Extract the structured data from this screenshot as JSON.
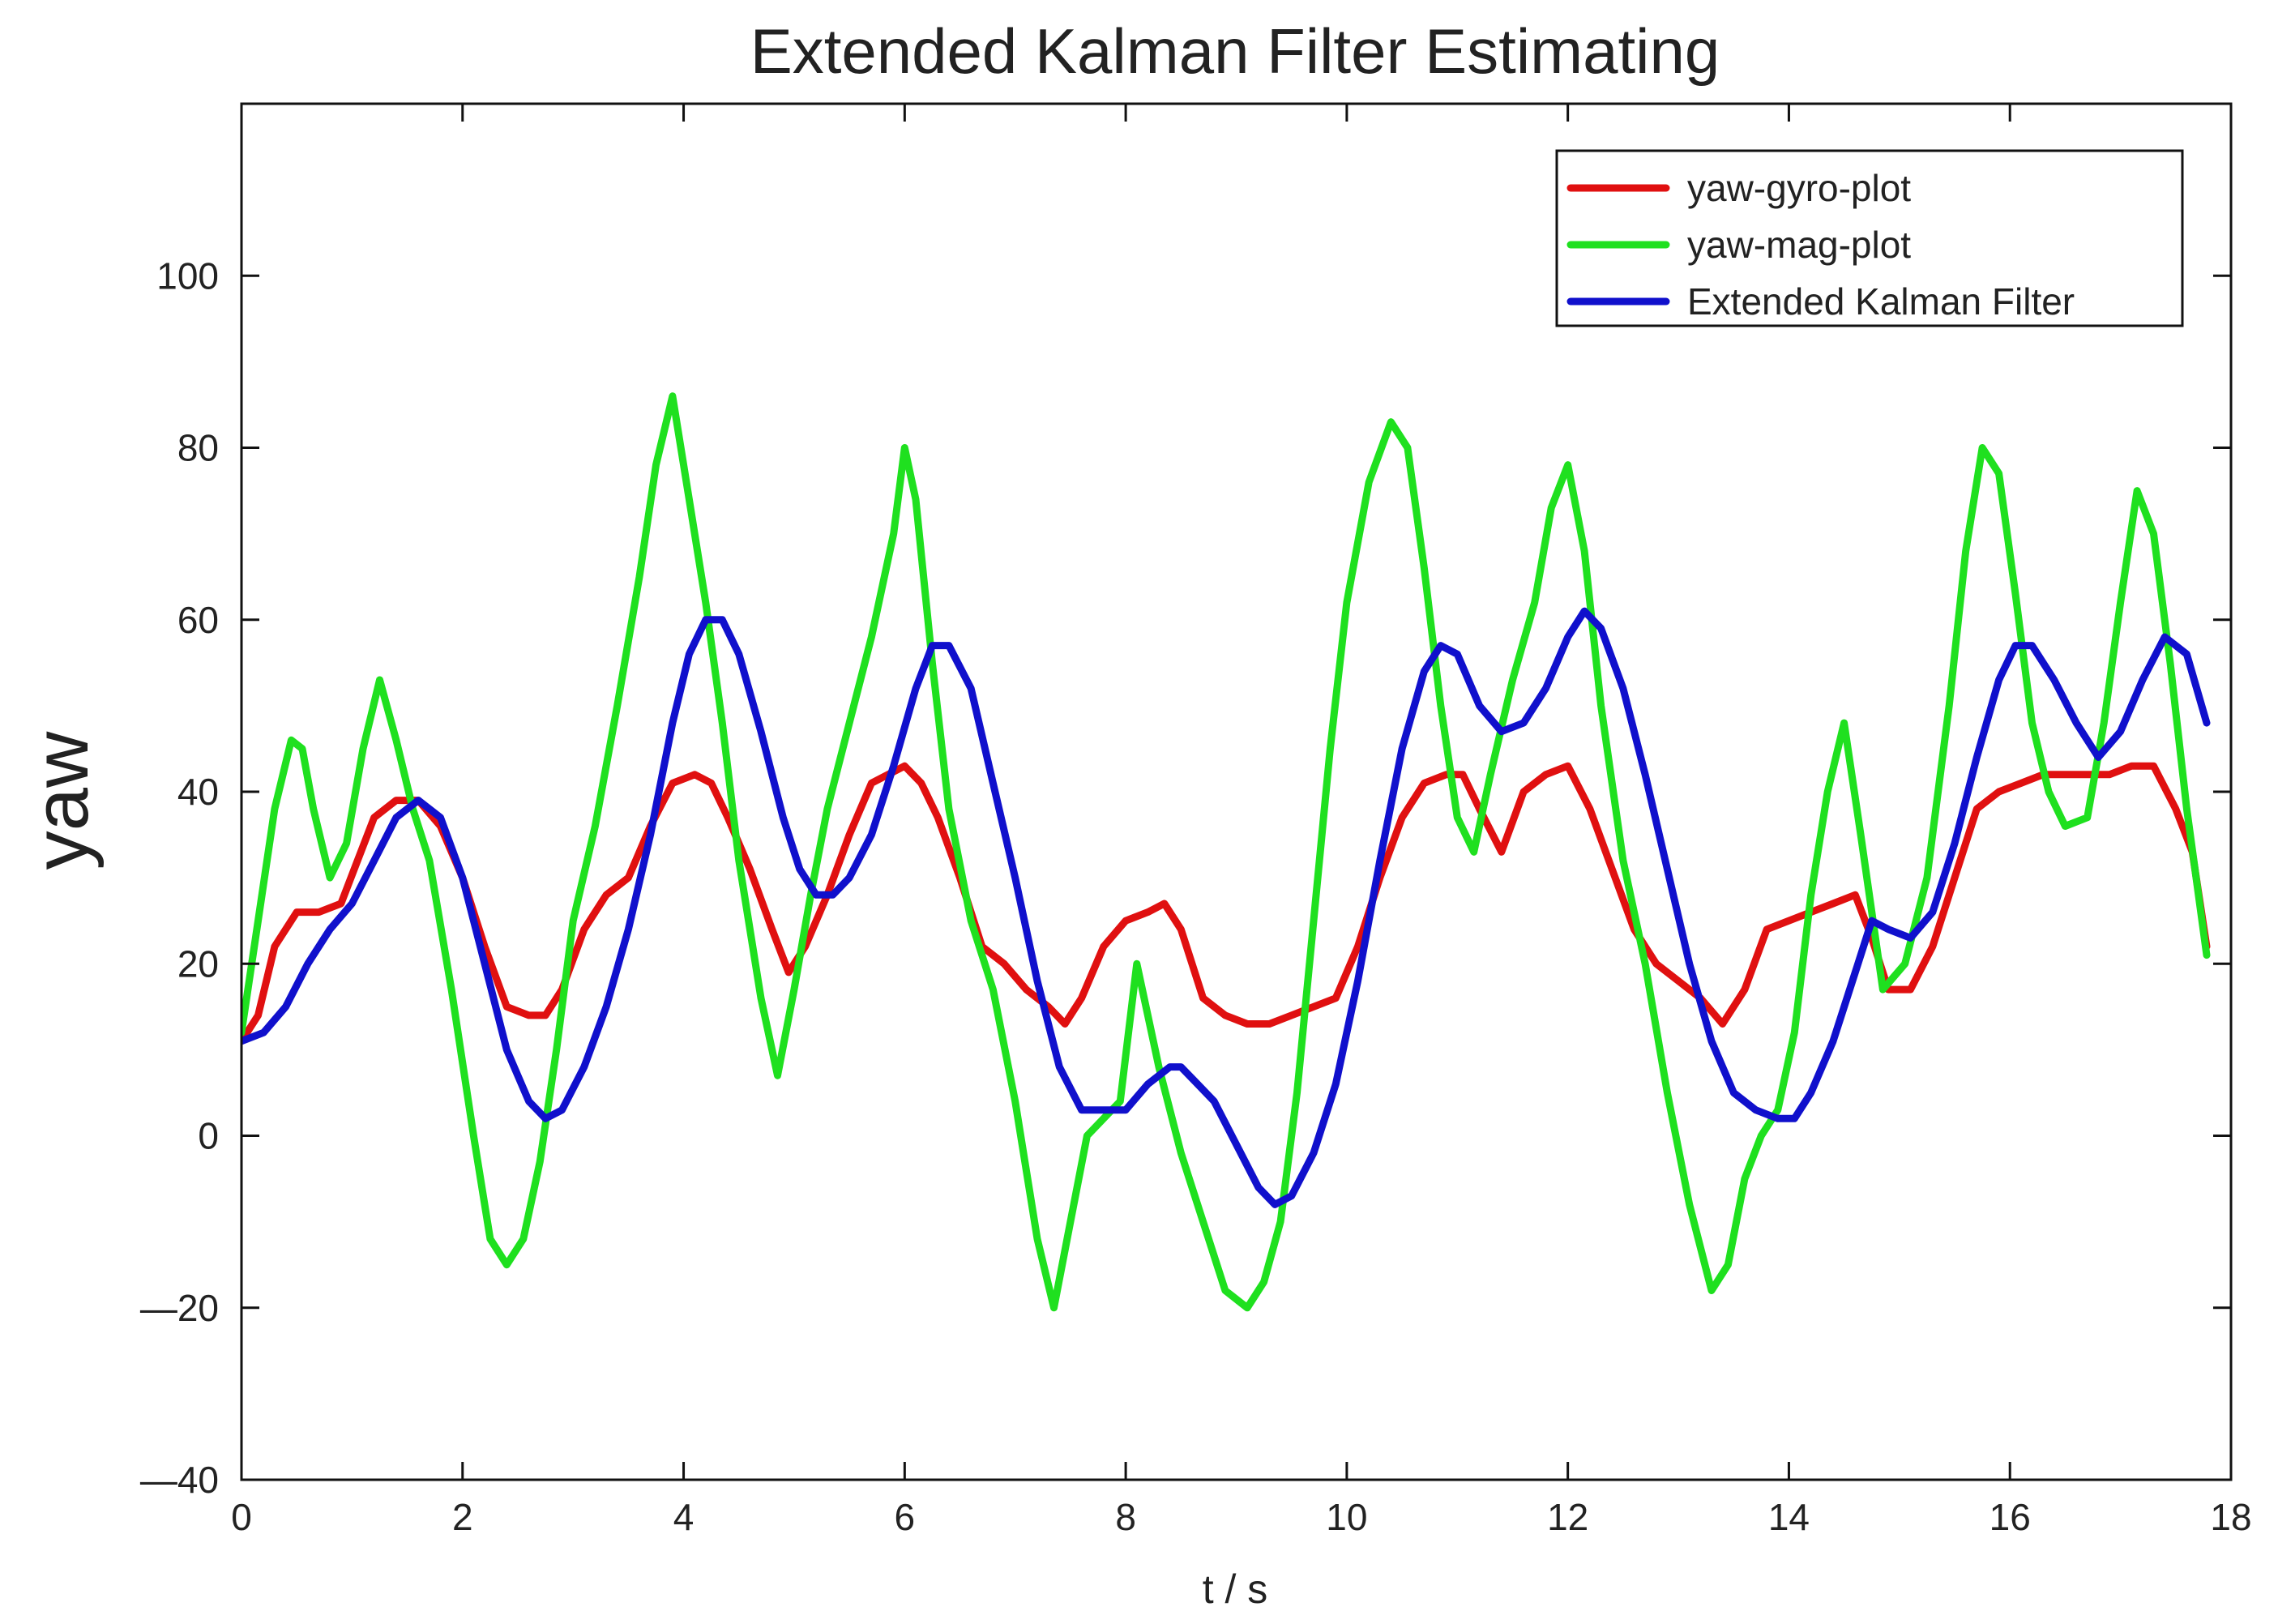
{
  "colors": {
    "gyro": "#e01010",
    "mag": "#1fe01f",
    "ekf": "#1010cc",
    "axis": "#111111",
    "background": "#ffffff"
  },
  "chart_data": {
    "type": "line",
    "title": "Extended Kalman Filter Estimating",
    "xlabel": "t / s",
    "ylabel": "yaw",
    "xlim": [
      0,
      18
    ],
    "ylim": [
      -40,
      120
    ],
    "xticks": [
      0,
      2,
      4,
      6,
      8,
      10,
      12,
      14,
      16,
      18
    ],
    "yticks": [
      -40,
      -20,
      0,
      20,
      40,
      60,
      80,
      100
    ],
    "xtick_labels": [
      "0",
      "2",
      "4",
      "6",
      "8",
      "10",
      "12",
      "14",
      "16",
      "18"
    ],
    "ytick_labels": [
      "—40",
      "—20",
      "0",
      "20",
      "40",
      "60",
      "80",
      "100"
    ],
    "grid": false,
    "legend_position": "top-right",
    "series": [
      {
        "name": "yaw-gyro-plot",
        "color": "#e01010",
        "x": [
          0,
          0.15,
          0.3,
          0.5,
          0.7,
          0.9,
          1.05,
          1.2,
          1.4,
          1.6,
          1.8,
          2.0,
          2.2,
          2.4,
          2.6,
          2.75,
          2.9,
          3.1,
          3.3,
          3.5,
          3.7,
          3.9,
          4.1,
          4.25,
          4.4,
          4.6,
          4.8,
          4.95,
          5.1,
          5.3,
          5.5,
          5.7,
          5.85,
          6.0,
          6.15,
          6.3,
          6.5,
          6.7,
          6.9,
          7.1,
          7.3,
          7.45,
          7.6,
          7.8,
          8.0,
          8.2,
          8.35,
          8.5,
          8.7,
          8.9,
          9.1,
          9.3,
          9.5,
          9.7,
          9.9,
          10.1,
          10.3,
          10.5,
          10.7,
          10.9,
          11.05,
          11.2,
          11.4,
          11.6,
          11.8,
          12.0,
          12.2,
          12.4,
          12.6,
          12.8,
          13.0,
          13.2,
          13.4,
          13.6,
          13.8,
          14.0,
          14.2,
          14.4,
          14.6,
          14.75,
          14.9,
          15.1,
          15.3,
          15.5,
          15.7,
          15.9,
          16.1,
          16.3,
          16.5,
          16.7,
          16.9,
          17.1,
          17.3,
          17.5,
          17.65,
          17.78
        ],
        "y": [
          11,
          14,
          22,
          26,
          26,
          27,
          32,
          37,
          39,
          39,
          36,
          30,
          22,
          15,
          14,
          14,
          17,
          24,
          28,
          30,
          36,
          41,
          42,
          41,
          37,
          31,
          24,
          19,
          22,
          28,
          35,
          41,
          42,
          43,
          41,
          37,
          30,
          22,
          20,
          17,
          15,
          13,
          16,
          22,
          25,
          26,
          27,
          24,
          16,
          14,
          13,
          13,
          14,
          15,
          16,
          22,
          30,
          37,
          41,
          42,
          42,
          38,
          33,
          40,
          42,
          43,
          38,
          31,
          24,
          20,
          18,
          16,
          13,
          17,
          24,
          25,
          26,
          27,
          28,
          23,
          17,
          17,
          22,
          30,
          38,
          40,
          41,
          42,
          42,
          42,
          42,
          43,
          43,
          38,
          33,
          22
        ]
      },
      {
        "name": "yaw-mag-plot",
        "color": "#1fe01f",
        "x": [
          0,
          0.15,
          0.3,
          0.45,
          0.55,
          0.65,
          0.8,
          0.95,
          1.1,
          1.25,
          1.4,
          1.55,
          1.7,
          1.9,
          2.1,
          2.25,
          2.4,
          2.55,
          2.7,
          2.85,
          3.0,
          3.2,
          3.4,
          3.6,
          3.75,
          3.9,
          4.05,
          4.2,
          4.35,
          4.5,
          4.7,
          4.85,
          5.0,
          5.15,
          5.3,
          5.5,
          5.7,
          5.9,
          6.0,
          6.1,
          6.25,
          6.4,
          6.6,
          6.8,
          7.0,
          7.2,
          7.35,
          7.5,
          7.65,
          7.8,
          7.95,
          8.1,
          8.3,
          8.5,
          8.7,
          8.9,
          9.1,
          9.25,
          9.4,
          9.55,
          9.7,
          9.85,
          10.0,
          10.2,
          10.4,
          10.55,
          10.7,
          10.85,
          11.0,
          11.15,
          11.3,
          11.5,
          11.7,
          11.85,
          12.0,
          12.15,
          12.3,
          12.5,
          12.7,
          12.9,
          13.1,
          13.3,
          13.45,
          13.6,
          13.75,
          13.9,
          14.05,
          14.2,
          14.35,
          14.5,
          14.65,
          14.85,
          15.05,
          15.25,
          15.45,
          15.6,
          15.75,
          15.9,
          16.05,
          16.2,
          16.35,
          16.5,
          16.7,
          16.85,
          17.0,
          17.15,
          17.3,
          17.45,
          17.6,
          17.78
        ],
        "y": [
          12,
          25,
          38,
          46,
          45,
          38,
          30,
          34,
          45,
          53,
          46,
          38,
          32,
          17,
          0,
          -12,
          -15,
          -12,
          -3,
          10,
          25,
          36,
          50,
          65,
          78,
          86,
          74,
          62,
          48,
          32,
          16,
          7,
          17,
          28,
          38,
          48,
          58,
          70,
          80,
          74,
          55,
          38,
          25,
          17,
          4,
          -12,
          -20,
          -10,
          0,
          2,
          4,
          20,
          8,
          -2,
          -10,
          -18,
          -20,
          -17,
          -10,
          5,
          25,
          45,
          62,
          76,
          83,
          80,
          66,
          50,
          37,
          33,
          42,
          53,
          62,
          73,
          78,
          68,
          50,
          32,
          20,
          5,
          -8,
          -18,
          -15,
          -5,
          0,
          3,
          12,
          28,
          40,
          48,
          35,
          17,
          20,
          30,
          50,
          68,
          80,
          77,
          63,
          48,
          40,
          36,
          37,
          48,
          62,
          75,
          70,
          55,
          38,
          21
        ]
      },
      {
        "name": "Extended Kalman Filter",
        "color": "#1010cc",
        "x": [
          0,
          0.2,
          0.4,
          0.6,
          0.8,
          1.0,
          1.2,
          1.4,
          1.6,
          1.8,
          2.0,
          2.2,
          2.4,
          2.6,
          2.75,
          2.9,
          3.1,
          3.3,
          3.5,
          3.7,
          3.9,
          4.05,
          4.2,
          4.35,
          4.5,
          4.7,
          4.9,
          5.05,
          5.2,
          5.35,
          5.5,
          5.7,
          5.9,
          6.1,
          6.25,
          6.4,
          6.6,
          6.8,
          7.0,
          7.2,
          7.4,
          7.6,
          7.8,
          8.0,
          8.2,
          8.4,
          8.5,
          8.65,
          8.8,
          9.0,
          9.2,
          9.35,
          9.5,
          9.7,
          9.9,
          10.1,
          10.3,
          10.5,
          10.7,
          10.85,
          11.0,
          11.2,
          11.4,
          11.6,
          11.8,
          12.0,
          12.15,
          12.3,
          12.5,
          12.7,
          12.9,
          13.1,
          13.3,
          13.5,
          13.7,
          13.9,
          14.05,
          14.2,
          14.4,
          14.6,
          14.75,
          14.9,
          15.1,
          15.3,
          15.5,
          15.7,
          15.9,
          16.05,
          16.2,
          16.4,
          16.6,
          16.8,
          17.0,
          17.2,
          17.4,
          17.6,
          17.78
        ],
        "y": [
          11,
          12,
          15,
          20,
          24,
          27,
          32,
          37,
          39,
          37,
          30,
          20,
          10,
          4,
          2,
          3,
          8,
          15,
          24,
          35,
          48,
          56,
          60,
          60,
          56,
          47,
          37,
          31,
          28,
          28,
          30,
          35,
          43,
          52,
          57,
          57,
          52,
          41,
          30,
          18,
          8,
          3,
          3,
          3,
          6,
          8,
          8,
          6,
          4,
          -1,
          -6,
          -8,
          -7,
          -2,
          6,
          18,
          32,
          45,
          54,
          57,
          56,
          50,
          47,
          48,
          52,
          58,
          61,
          59,
          52,
          42,
          31,
          20,
          11,
          5,
          3,
          2,
          2,
          5,
          11,
          19,
          25,
          24,
          23,
          26,
          34,
          44,
          53,
          57,
          57,
          53,
          48,
          44,
          47,
          53,
          58,
          56,
          48
        ]
      }
    ]
  }
}
